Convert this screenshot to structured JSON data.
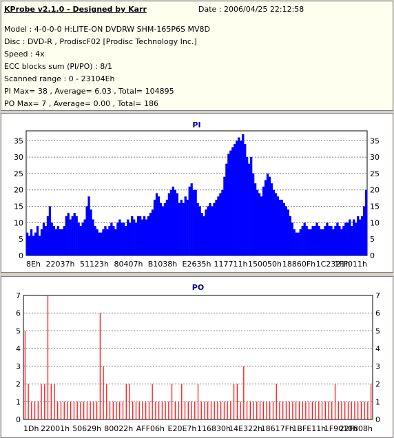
{
  "info": {
    "title": "KProbe v2.1.0 - Designed by Karr",
    "date": "Date : 2006/04/25 22:12:58",
    "model": "Model : 4-0-0-0 H:LITE-ON DVDRW SHM-165P6S MV8D",
    "disc": "Disc : DVD-R , ProdiscF02 [Prodisc Technology Inc.]",
    "speed": "Speed : 4x",
    "ecc": "ECC blocks sum (PI/PO) : 8/1",
    "range": "Scanned range : 0 - 23104Eh",
    "pi_stats": "PI Max= 38 , Average= 6.03 , Total= 104895",
    "po_stats": "PO Max= 7 , Average= 0.00 , Total= 186"
  },
  "colors": {
    "pi": "#0000ff",
    "po": "#ff0000",
    "title": "#00008b",
    "grid": "#808080"
  },
  "chart_data": [
    {
      "type": "area",
      "title": "PI",
      "ylim": [
        0,
        38
      ],
      "yticks": [
        0,
        5,
        10,
        15,
        20,
        25,
        30,
        35
      ],
      "xtick_labels": [
        "8Eh",
        "22037h",
        "51123h",
        "80407h",
        "B1038h",
        "E2635h",
        "117711h",
        "150050h",
        "18860Fh",
        "1C2321h",
        "1FF011h"
      ],
      "grid": true,
      "series": [
        {
          "values": [
            7,
            6,
            8,
            6,
            7,
            9,
            6,
            8,
            10,
            9,
            12,
            15,
            10,
            9,
            8,
            9,
            8,
            8,
            9,
            12,
            13,
            11,
            12,
            13,
            12,
            10,
            9,
            10,
            11,
            15,
            18,
            14,
            11,
            9,
            8,
            7,
            7,
            8,
            9,
            8,
            9,
            10,
            9,
            8,
            10,
            11,
            10,
            10,
            9,
            11,
            10,
            12,
            11,
            10,
            12,
            12,
            11,
            12,
            11,
            12,
            13,
            14,
            17,
            19,
            18,
            16,
            15,
            16,
            17,
            19,
            20,
            21,
            20,
            19,
            16,
            17,
            16,
            18,
            17,
            21,
            22,
            20,
            20,
            16,
            15,
            13,
            12,
            14,
            15,
            16,
            15,
            16,
            17,
            18,
            19,
            20,
            24,
            28,
            31,
            32,
            33,
            34,
            35,
            36,
            35,
            37,
            34,
            30,
            28,
            30,
            25,
            22,
            20,
            19,
            18,
            21,
            23,
            25,
            24,
            22,
            20,
            19,
            18,
            17,
            17,
            16,
            15,
            14,
            12,
            10,
            8,
            7,
            7,
            8,
            9,
            10,
            9,
            8,
            8,
            9,
            9,
            10,
            9,
            8,
            8,
            9,
            10,
            9,
            9,
            8,
            9,
            10,
            9,
            8,
            9,
            10,
            10,
            11,
            9,
            11,
            10,
            12,
            11,
            12,
            15,
            20
          ]
        }
      ]
    },
    {
      "type": "bar",
      "title": "PO",
      "ylim": [
        0,
        7
      ],
      "yticks": [
        0,
        1,
        2,
        3,
        4,
        5,
        6,
        7
      ],
      "xtick_labels": [
        "1Dh",
        "22001h",
        "50629h",
        "80022h",
        "AFF06h",
        "E20E7h",
        "116830h",
        "14E322h",
        "18617Fh",
        "1BFE11h",
        "1F9010h",
        "22F808h"
      ],
      "grid": true,
      "series": [
        {
          "values": [
            5,
            2,
            1,
            1,
            1,
            2,
            2,
            7,
            2,
            2,
            1,
            1,
            1,
            1,
            1,
            1,
            1,
            1,
            1,
            1,
            1,
            1,
            1,
            6,
            3,
            2,
            1,
            1,
            1,
            1,
            1,
            2,
            2,
            1,
            1,
            1,
            1,
            1,
            1,
            2,
            1,
            1,
            1,
            1,
            1,
            2,
            1,
            1,
            2,
            1,
            1,
            1,
            1,
            2,
            1,
            1,
            1,
            1,
            1,
            1,
            1,
            1,
            1,
            1,
            2,
            2,
            1,
            3,
            1,
            1,
            1,
            1,
            1,
            1,
            1,
            1,
            1,
            2,
            1,
            1,
            1,
            1,
            1,
            1,
            1,
            1,
            1,
            1,
            1,
            1,
            1,
            1,
            1,
            1,
            1,
            2,
            1,
            1,
            1,
            1,
            1,
            1,
            1,
            1,
            1,
            1,
            2
          ]
        }
      ]
    }
  ]
}
